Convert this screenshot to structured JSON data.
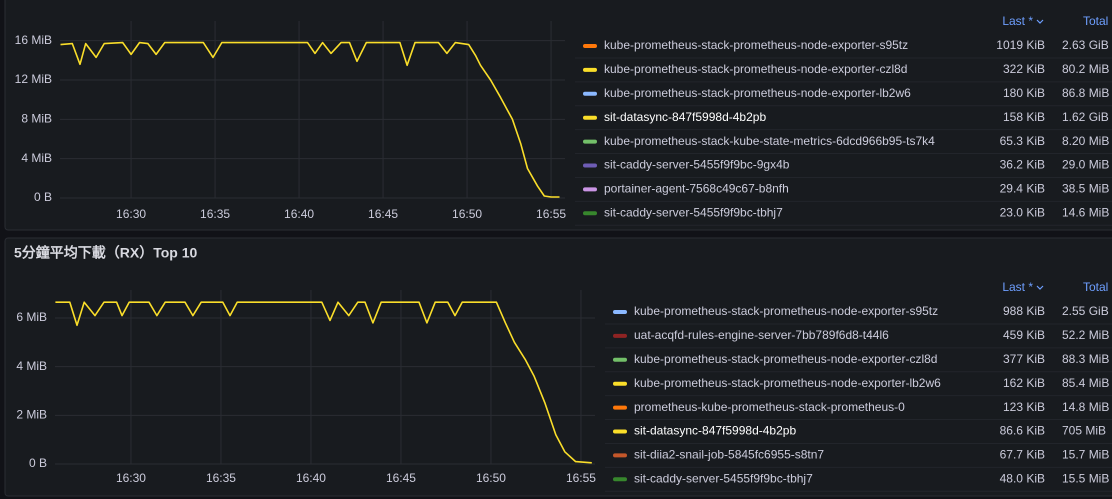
{
  "chart_data": [
    {
      "type": "line",
      "x": [
        25.8,
        26.5,
        26.96,
        27.3,
        27.92,
        28.4,
        29.5,
        30,
        30.5,
        31,
        31.49,
        32,
        33,
        34.3,
        34.88,
        35.4,
        36.5,
        38,
        39.5,
        40.5,
        40.95,
        41.4,
        41.9,
        42.5,
        43,
        43.45,
        44,
        45,
        46,
        46.43,
        46.9,
        48.3,
        48.8,
        49.3,
        50.1,
        50.5,
        50.8,
        51.4,
        52,
        52.7,
        53.2,
        53.6,
        54.2,
        54.6,
        55,
        55.5
      ],
      "xlim": [
        25.77,
        55.83
      ],
      "xticks": [
        {
          "value": 30,
          "label": "16:30"
        },
        {
          "value": 35,
          "label": "16:35"
        },
        {
          "value": 40,
          "label": "16:40"
        },
        {
          "value": 45,
          "label": "16:45"
        },
        {
          "value": 50,
          "label": "16:50"
        },
        {
          "value": 55,
          "label": "16:55"
        }
      ],
      "ylim": [
        0,
        18
      ],
      "yticks": [
        {
          "value": 0,
          "label": "0 B"
        },
        {
          "value": 4,
          "label": "4 MiB"
        },
        {
          "value": 8,
          "label": "8 MiB"
        },
        {
          "value": 12,
          "label": "12 MiB"
        },
        {
          "value": 16,
          "label": "16 MiB"
        }
      ],
      "grid": true,
      "legend_columns": [
        "Last *",
        "Total"
      ],
      "series": [
        {
          "name": "kube-prometheus-stack-prometheus-node-exporter-s95tz",
          "color": "#ff780a",
          "last": "1019 KiB",
          "total": "2.63 GiB"
        },
        {
          "name": "kube-prometheus-stack-prometheus-node-exporter-czl8d",
          "color": "#fade2a",
          "last": "322 KiB",
          "total": "80.2 MiB"
        },
        {
          "name": "kube-prometheus-stack-prometheus-node-exporter-lb2w6",
          "color": "#8ab8ff",
          "last": "180 KiB",
          "total": "86.8 MiB"
        },
        {
          "name": "sit-datasync-847f5998d-4b2pb",
          "color": "#fade2a",
          "last": "158 KiB",
          "total": "1.62 GiB",
          "values": [
            15.6,
            15.7,
            13.6,
            15.7,
            14.3,
            15.7,
            15.8,
            14.6,
            15.8,
            15.7,
            14.6,
            15.8,
            15.8,
            15.8,
            14.3,
            15.8,
            15.8,
            15.8,
            15.8,
            15.8,
            14.7,
            15.8,
            14.7,
            15.8,
            15.8,
            13.9,
            15.8,
            15.8,
            15.8,
            13.5,
            15.8,
            15.8,
            14.7,
            15.8,
            15.6,
            14.5,
            13.5,
            12,
            10.2,
            8,
            5.5,
            3,
            1.2,
            0.2,
            0.1,
            0.1
          ]
        },
        {
          "name": "kube-prometheus-stack-kube-state-metrics-6dcd966b95-ts7k4",
          "color": "#73bf69",
          "last": "65.3 KiB",
          "total": "8.20 MiB"
        },
        {
          "name": "sit-caddy-server-5455f9f9bc-9gx4b",
          "color": "#6e5cb5",
          "last": "36.2 KiB",
          "total": "29.0 MiB"
        },
        {
          "name": "portainer-agent-7568c49c67-b8nfh",
          "color": "#ca95e5",
          "last": "29.4 KiB",
          "total": "38.5 MiB"
        },
        {
          "name": "sit-caddy-server-5455f9f9bc-tbhj7",
          "color": "#37872d",
          "last": "23.0 KiB",
          "total": "14.6 MiB"
        }
      ]
    },
    {
      "type": "line",
      "title": "5分鐘平均下載（RX）Top 10",
      "x": [
        25.8,
        26.6,
        27,
        27.4,
        28,
        28.5,
        29.2,
        29.5,
        29.9,
        31,
        31.44,
        31.9,
        33,
        33.44,
        33.9,
        35.1,
        35.5,
        35.9,
        40.6,
        41.06,
        41.5,
        42.1,
        42.6,
        43,
        43.44,
        43.9,
        46,
        46.44,
        46.9,
        47.6,
        48,
        48.4,
        50.3,
        50.8,
        51.3,
        51.9,
        52.4,
        53,
        53.6,
        54.1,
        54.7,
        55.6
      ],
      "xlim": [
        25.78,
        55.78
      ],
      "xticks": [
        {
          "value": 30,
          "label": "16:30"
        },
        {
          "value": 35,
          "label": "16:35"
        },
        {
          "value": 40,
          "label": "16:40"
        },
        {
          "value": 45,
          "label": "16:45"
        },
        {
          "value": 50,
          "label": "16:50"
        },
        {
          "value": 55,
          "label": "16:55"
        }
      ],
      "ylim": [
        0,
        7.15
      ],
      "yticks": [
        {
          "value": 0,
          "label": "0 B"
        },
        {
          "value": 2,
          "label": "2 MiB"
        },
        {
          "value": 4,
          "label": "4 MiB"
        },
        {
          "value": 6,
          "label": "6 MiB"
        }
      ],
      "grid": true,
      "legend_columns": [
        "Last *",
        "Total"
      ],
      "series": [
        {
          "name": "kube-prometheus-stack-prometheus-node-exporter-s95tz",
          "color": "#8ab8ff",
          "last": "988 KiB",
          "total": "2.55 GiB"
        },
        {
          "name": "uat-acqfd-rules-engine-server-7bb789f6d8-t44l6",
          "color": "#8f2323",
          "last": "459 KiB",
          "total": "52.2 MiB"
        },
        {
          "name": "kube-prometheus-stack-prometheus-node-exporter-czl8d",
          "color": "#73bf69",
          "last": "377 KiB",
          "total": "88.3 MiB"
        },
        {
          "name": "kube-prometheus-stack-prometheus-node-exporter-lb2w6",
          "color": "#fade2a",
          "last": "162 KiB",
          "total": "85.4 MiB"
        },
        {
          "name": "prometheus-kube-prometheus-stack-prometheus-0",
          "color": "#ff780a",
          "last": "123 KiB",
          "total": "14.8 MiB"
        },
        {
          "name": "sit-datasync-847f5998d-4b2pb",
          "color": "#fade2a",
          "last": "86.6 KiB",
          "total": "705 MiB",
          "values": [
            6.65,
            6.65,
            5.7,
            6.65,
            6.1,
            6.65,
            6.65,
            6.1,
            6.65,
            6.65,
            6.1,
            6.65,
            6.65,
            6.1,
            6.65,
            6.65,
            6.1,
            6.65,
            6.65,
            5.9,
            6.65,
            6.1,
            6.65,
            6.65,
            5.8,
            6.65,
            6.65,
            5.8,
            6.65,
            6.65,
            6.1,
            6.65,
            6.65,
            5.8,
            5.0,
            4.3,
            3.6,
            2.5,
            1.2,
            0.5,
            0.1,
            0.05
          ]
        },
        {
          "name": "sit-diia2-snail-job-5845fc6955-s8tn7",
          "color": "#c4572a",
          "last": "67.7 KiB",
          "total": "15.7 MiB"
        },
        {
          "name": "sit-caddy-server-5455f9f9bc-tbhj7",
          "color": "#37872d",
          "last": "48.0 KiB",
          "total": "15.5 MiB"
        }
      ]
    }
  ]
}
